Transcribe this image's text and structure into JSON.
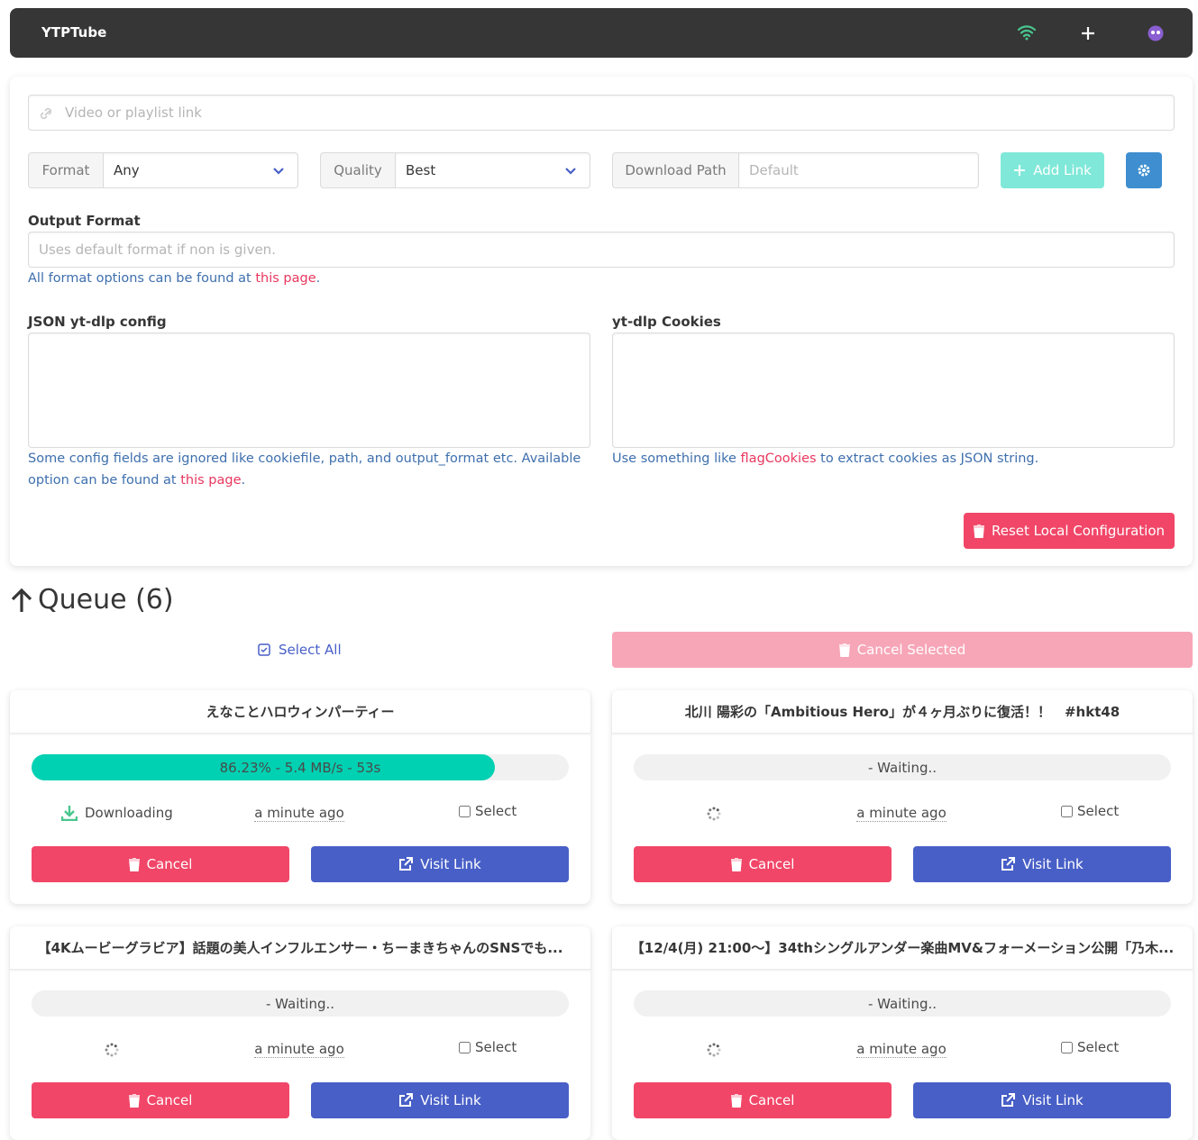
{
  "navbar": {
    "brand": "YTPTube"
  },
  "form": {
    "url_placeholder": "Video or playlist link",
    "format_label": "Format",
    "format_value": "Any",
    "quality_label": "Quality",
    "quality_value": "Best",
    "path_label": "Download Path",
    "path_placeholder": "Default",
    "add_button": "Add Link",
    "output_label": "Output Format",
    "output_placeholder": "Uses default format if non is given.",
    "output_help": {
      "text": "All format options can be found at ",
      "link": "this page",
      "end": "."
    },
    "config_label": "JSON yt-dlp config",
    "config_help": {
      "text": "Some config fields are ignored like cookiefile, path, and output_format etc. Available option can be found at ",
      "link": "this page",
      "end": "."
    },
    "cookies_label": "yt-dlp Cookies",
    "cookies_help": {
      "text": "Use something like ",
      "link": "flagCookies",
      "end": " to extract cookies as JSON string."
    },
    "reset_button": "Reset Local Configuration"
  },
  "queue": {
    "title": "Queue (6)",
    "select_all": "Select All",
    "cancel_selected": "Cancel Selected",
    "items": [
      {
        "title": "えなことハロウィンパーティー",
        "progress": 86.23,
        "progress_text": "86.23% - 5.4 MB/s - 53s",
        "status": "Downloading",
        "time": "a minute ago",
        "select": "Select",
        "cancel": "Cancel",
        "visit": "Visit Link"
      },
      {
        "title": "北川 陽彩の「Ambitious Hero」が４ヶ月ぶりに復活！！　#hkt48",
        "progress_text": "- Waiting..",
        "time": "a minute ago",
        "select": "Select",
        "cancel": "Cancel",
        "visit": "Visit Link"
      },
      {
        "title": "【4Kムービーグラビア】話題の美人インフルエンサー・ちーまきちゃんのSNSでも...",
        "progress_text": "- Waiting..",
        "time": "a minute ago",
        "select": "Select",
        "cancel": "Cancel",
        "visit": "Visit Link"
      },
      {
        "title": "【12/4(月) 21:00～】34thシングルアンダー楽曲MV&フォーメーション公開「乃木...",
        "progress_text": "- Waiting..",
        "time": "a minute ago",
        "select": "Select",
        "cancel": "Cancel",
        "visit": "Visit Link"
      }
    ]
  }
}
